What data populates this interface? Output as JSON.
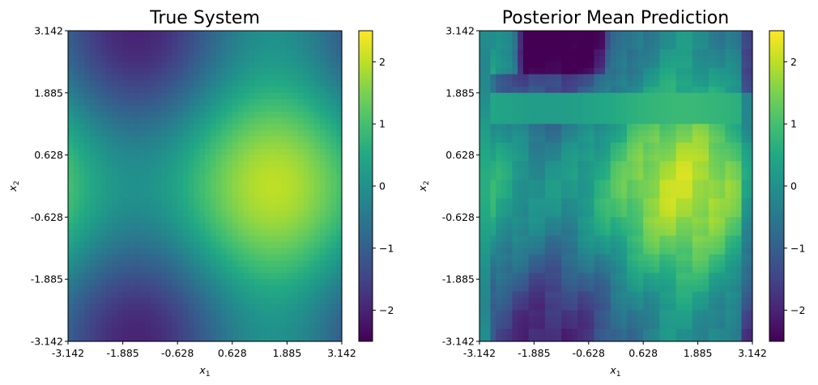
{
  "chart_data": [
    {
      "type": "heatmap",
      "title": "True System",
      "xlabel": "x",
      "xlabel_sub": "1",
      "ylabel": "x",
      "ylabel_sub": "2",
      "xlim": [
        -3.142,
        3.142
      ],
      "ylim": [
        -3.142,
        3.142
      ],
      "x_ticks": [
        "-3.142",
        "-1.885",
        "-0.628",
        "0.628",
        "1.885",
        "3.142"
      ],
      "y_ticks": [
        "3.142",
        "1.885",
        "0.628",
        "-0.628",
        "-1.885",
        "-3.142"
      ],
      "grid_resolution": [
        50,
        50
      ],
      "field": "sin(x1) + cos(x2)",
      "colormap": "viridis",
      "colorbar": {
        "vmin": -2.5,
        "vmax": 2.5,
        "ticks": [
          "2",
          "1",
          "0",
          "−1",
          "−2"
        ]
      }
    },
    {
      "type": "heatmap",
      "title": "Posterior Mean Prediction",
      "xlabel": "x",
      "xlabel_sub": "1",
      "ylabel": "x",
      "ylabel_sub": "2",
      "xlim": [
        -3.142,
        3.142
      ],
      "ylim": [
        -3.142,
        3.142
      ],
      "x_ticks": [
        "-3.142",
        "-1.885",
        "-0.628",
        "0.628",
        "1.885",
        "3.142"
      ],
      "y_ticks": [
        "3.142",
        "1.885",
        "0.628",
        "-0.628",
        "-1.885",
        "-3.142"
      ],
      "grid_resolution": [
        50,
        50
      ],
      "field": "approximation of sin(x1) + cos(x2) with blocky artifacts near edges",
      "colormap": "viridis",
      "colorbar": {
        "vmin": -2.5,
        "vmax": 2.5,
        "ticks": [
          "2",
          "1",
          "0",
          "−1",
          "−2"
        ]
      }
    }
  ]
}
